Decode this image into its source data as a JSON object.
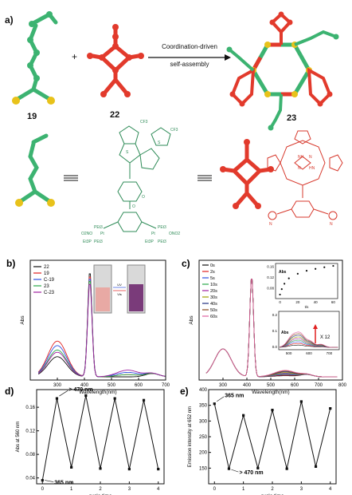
{
  "panel_a": {
    "label": "a)",
    "plus": "+",
    "arrow_text_line1": "Coordination-driven",
    "arrow_text_line2": "self-assembly",
    "compound_labels": [
      "19",
      "22",
      "23"
    ],
    "chem_labels": [
      "CF3",
      "CF3",
      "S",
      "S",
      "O",
      "O",
      "PEt3",
      "PEt3",
      "PEt3",
      "PEt3",
      "Pt",
      "Pt",
      "O2NO",
      "ONO2",
      "Et3P",
      "Et3P",
      "NH",
      "N",
      "N",
      "HN",
      "N",
      "N"
    ],
    "colors": {
      "green": "#3cb371",
      "red": "#e23a2c",
      "yellow": "#e8c21a",
      "chem_red": "#d7382c",
      "chem_green": "#2e8b57"
    }
  },
  "chart_data": [
    {
      "type": "line",
      "panel": "b)",
      "xlabel": "Wavelength(nm)",
      "ylabel": "Abs",
      "xlim": [
        200,
        700
      ],
      "xticks": [
        300,
        400,
        500,
        600,
        700
      ],
      "legend_placement": "top-left",
      "series": [
        {
          "name": "22",
          "color": "#111111"
        },
        {
          "name": "19",
          "color": "#e02020"
        },
        {
          "name": "C-19",
          "color": "#3050e0"
        },
        {
          "name": "23",
          "color": "#2aa84a"
        },
        {
          "name": "C-23",
          "color": "#a020a0"
        }
      ],
      "vial_labels": [
        "UV",
        "Vis"
      ]
    },
    {
      "type": "line",
      "panel": "c)",
      "xlabel": "Wavelength(nm)",
      "ylabel": "Abs",
      "xlim": [
        200,
        800
      ],
      "xticks": [
        300,
        400,
        500,
        600,
        700,
        800
      ],
      "legend_placement": "top-left",
      "series": [
        {
          "name": "0s",
          "color": "#111111"
        },
        {
          "name": "2s",
          "color": "#e02020"
        },
        {
          "name": "5s",
          "color": "#3050e0"
        },
        {
          "name": "10s",
          "color": "#2aa84a"
        },
        {
          "name": "20s",
          "color": "#a020a0"
        },
        {
          "name": "30s",
          "color": "#a0a000"
        },
        {
          "name": "40s",
          "color": "#203080"
        },
        {
          "name": "50s",
          "color": "#8a4a20"
        },
        {
          "name": "60s",
          "color": "#e060a0"
        }
      ],
      "inset_top": {
        "ylabel": "Abs",
        "xlabel": "t/s",
        "yticks": [
          0.08,
          0.12,
          0.16
        ],
        "xticks": [
          0,
          20,
          40,
          60
        ],
        "x": [
          0,
          2,
          5,
          10,
          20,
          30,
          40,
          50,
          60
        ],
        "y": [
          0.055,
          0.075,
          0.095,
          0.115,
          0.132,
          0.143,
          0.15,
          0.156,
          0.161
        ]
      },
      "inset_bottom": {
        "ylabel": "Abs",
        "yticks": [
          0.0,
          0.1,
          0.2
        ],
        "xticks": [
          500,
          600,
          700
        ],
        "magnification": "X 12"
      }
    },
    {
      "type": "line",
      "panel": "d)",
      "xlabel": "cycle time",
      "ylabel": "Abs at 560 nm",
      "xlim": [
        -0.2,
        4.2
      ],
      "ylim": [
        0.03,
        0.19
      ],
      "xticks": [
        0,
        1,
        2,
        3,
        4
      ],
      "yticks": [
        0.04,
        0.08,
        0.12,
        0.16
      ],
      "x": [
        0,
        0.5,
        1,
        1.5,
        2,
        2.5,
        3,
        3.5,
        4
      ],
      "y": [
        0.036,
        0.175,
        0.058,
        0.18,
        0.056,
        0.175,
        0.055,
        0.172,
        0.055
      ],
      "annotations": [
        "> 470 nm",
        "365 nm"
      ]
    },
    {
      "type": "line",
      "panel": "e)",
      "xlabel": "cycle time",
      "ylabel": "Emission intensity at 652 nm",
      "xlim": [
        -0.2,
        4.2
      ],
      "ylim": [
        100,
        400
      ],
      "xticks": [
        0,
        1,
        2,
        3,
        4
      ],
      "yticks": [
        150,
        200,
        250,
        300,
        350,
        400
      ],
      "x": [
        0,
        0.5,
        1,
        1.5,
        2,
        2.5,
        3,
        3.5,
        4
      ],
      "y": [
        355,
        148,
        318,
        150,
        335,
        148,
        362,
        155,
        340
      ],
      "annotations": [
        "365 nm",
        "> 470 nm"
      ]
    }
  ]
}
